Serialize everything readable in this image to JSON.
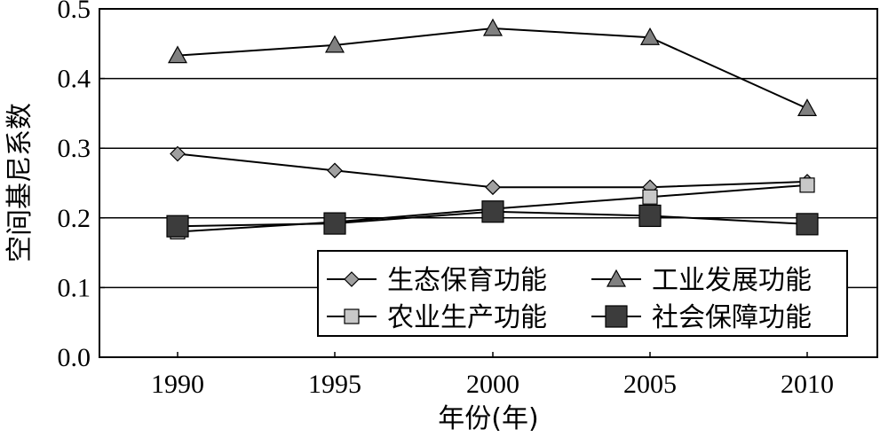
{
  "chart_data": {
    "type": "line",
    "x": [
      1990,
      1995,
      2000,
      2005,
      2010
    ],
    "xlabel": "年份(年)",
    "ylabel": "空间基尼系数",
    "ylim": [
      0.0,
      0.5
    ],
    "yticks": [
      "0.0",
      "0.1",
      "0.2",
      "0.3",
      "0.4",
      "0.5"
    ],
    "xticks": [
      "1990",
      "1995",
      "2000",
      "2005",
      "2010"
    ],
    "grid": "horizontal",
    "legend_position": "bottom-right",
    "series": [
      {
        "name": "生态保育功能",
        "marker": "diamond",
        "color": "#a0a0a0",
        "values": [
          0.292,
          0.268,
          0.244,
          0.244,
          0.252
        ]
      },
      {
        "name": "工业发展功能",
        "marker": "triangle",
        "color": "#808080",
        "values": [
          0.433,
          0.448,
          0.472,
          0.459,
          0.357
        ]
      },
      {
        "name": "农业生产功能",
        "marker": "square-light",
        "color": "#c8c8c8",
        "values": [
          0.18,
          0.194,
          0.213,
          0.23,
          0.247
        ]
      },
      {
        "name": "社会保障功能",
        "marker": "square-dark",
        "color": "#3c3c3c",
        "values": [
          0.188,
          0.192,
          0.209,
          0.203,
          0.191
        ]
      }
    ]
  }
}
